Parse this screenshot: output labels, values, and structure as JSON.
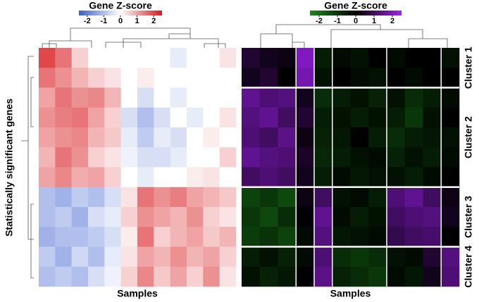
{
  "chart_data": [
    {
      "type": "heatmap",
      "title": "Gene Z-score",
      "xlabel": "Samples",
      "ylabel": "Statistically significant genes",
      "colors": {
        "low": "#3a5fcd",
        "mid": "#ffffff",
        "high": "#d7191c"
      },
      "zlim": [
        -2.5,
        2.5
      ],
      "zticks": [
        -2,
        -1,
        0,
        1,
        2
      ],
      "values": [
        [
          2,
          1.5,
          0.5,
          0,
          0,
          0,
          0,
          0,
          -0.3,
          0,
          0,
          0.3
        ],
        [
          1.5,
          1.2,
          0.8,
          0.5,
          0.3,
          0,
          0.2,
          0,
          0,
          0,
          0,
          0
        ],
        [
          1,
          1.5,
          1.2,
          1.3,
          0.8,
          0,
          -0.5,
          0,
          -0.3,
          0,
          0,
          0
        ],
        [
          1.2,
          1.4,
          1.5,
          1,
          0.5,
          -0.5,
          -1,
          -0.5,
          0,
          -0.3,
          0,
          0.3
        ],
        [
          1,
          1.2,
          1.3,
          0.8,
          0.6,
          -0.3,
          -0.8,
          -0.3,
          -0.5,
          0,
          0.2,
          0
        ],
        [
          0.8,
          1.5,
          1.2,
          0.5,
          0.3,
          -0.2,
          -0.5,
          -0.5,
          -0.3,
          0,
          0,
          0.5
        ],
        [
          1,
          1.3,
          0.9,
          1,
          0.5,
          0,
          -0.3,
          0,
          0,
          0.2,
          0.3,
          0
        ],
        [
          -1,
          -1.2,
          -0.8,
          -1,
          -0.5,
          0.3,
          1.5,
          1.2,
          1.4,
          1,
          0.8,
          0.6
        ],
        [
          -1,
          -0.8,
          -1.2,
          -0.5,
          -0.3,
          0.5,
          1.2,
          1,
          0.8,
          1.2,
          0.5,
          0.3
        ],
        [
          -1.2,
          -1,
          -1,
          -0.8,
          -0.5,
          0.2,
          1.5,
          0.5,
          0.8,
          1,
          0.6,
          0.8
        ],
        [
          -0.8,
          -1.2,
          -0.6,
          -1,
          -0.3,
          0.3,
          1,
          0.8,
          1.2,
          0.8,
          1,
          0.5
        ],
        [
          -1,
          -0.8,
          -1,
          -0.5,
          -0.2,
          0.5,
          1.3,
          0.6,
          1,
          0.5,
          1.2,
          0.3
        ]
      ]
    },
    {
      "type": "heatmap",
      "title": "Gene Z-score",
      "xlabel": "Samples",
      "colors": {
        "low": "#1a8a1a",
        "mid": "#000000",
        "high": "#a020f0"
      },
      "zlim": [
        -2.5,
        2.5
      ],
      "zticks": [
        -2,
        -1,
        0,
        1,
        2
      ],
      "clusters": [
        {
          "label": "Cluster 1",
          "rows": 2
        },
        {
          "label": "Cluster 2",
          "rows": 5
        },
        {
          "label": "Cluster 3",
          "rows": 3
        },
        {
          "label": "Cluster 4",
          "rows": 2
        }
      ],
      "values": [
        [
          0.5,
          0.3,
          0.2,
          2,
          -0.5,
          -0.2,
          -0.3,
          0,
          -0.2,
          0,
          0,
          -0.3
        ],
        [
          0.3,
          0.5,
          0,
          1.8,
          -0.3,
          0,
          -0.2,
          -0.3,
          0,
          -0.2,
          0,
          0
        ],
        [
          1.5,
          1.2,
          1.3,
          0.3,
          -0.8,
          -0.5,
          -0.3,
          -0.6,
          -0.3,
          -0.8,
          -0.5,
          -0.2
        ],
        [
          1.3,
          1.5,
          1,
          0.5,
          -0.5,
          -0.3,
          -0.5,
          -0.3,
          -0.5,
          -1,
          -0.3,
          0
        ],
        [
          1.2,
          1,
          1.4,
          0.2,
          -0.6,
          -0.4,
          0,
          -0.5,
          -0.8,
          -0.5,
          -0.4,
          -0.3
        ],
        [
          1.5,
          1.3,
          1.2,
          0.4,
          -0.7,
          -0.5,
          -0.3,
          -0.2,
          -0.6,
          -0.3,
          -0.5,
          -0.2
        ],
        [
          1,
          1.2,
          1,
          0.3,
          -0.5,
          -0.2,
          -0.4,
          -0.3,
          -0.3,
          -0.5,
          -0.2,
          0
        ],
        [
          -1.2,
          -1,
          -1.3,
          0.2,
          1,
          -0.3,
          -0.2,
          -0.5,
          1.2,
          1.5,
          1,
          0.2
        ],
        [
          -1,
          -1.3,
          -0.8,
          0,
          1.5,
          -0.2,
          -0.5,
          -0.3,
          1,
          1.2,
          1.3,
          0.3
        ],
        [
          -1.1,
          -0.9,
          -1.2,
          -0.2,
          1.3,
          -0.4,
          -0.3,
          -0.2,
          0.8,
          1,
          1.1,
          0
        ],
        [
          -0.5,
          -0.3,
          -0.6,
          -0.2,
          1.2,
          -0.8,
          -1,
          -0.8,
          -0.3,
          -0.2,
          0.5,
          1.3
        ],
        [
          -0.3,
          -0.6,
          -0.4,
          0,
          1.4,
          -0.6,
          -0.8,
          -1,
          -0.2,
          -0.4,
          0.3,
          1.2
        ]
      ]
    }
  ]
}
